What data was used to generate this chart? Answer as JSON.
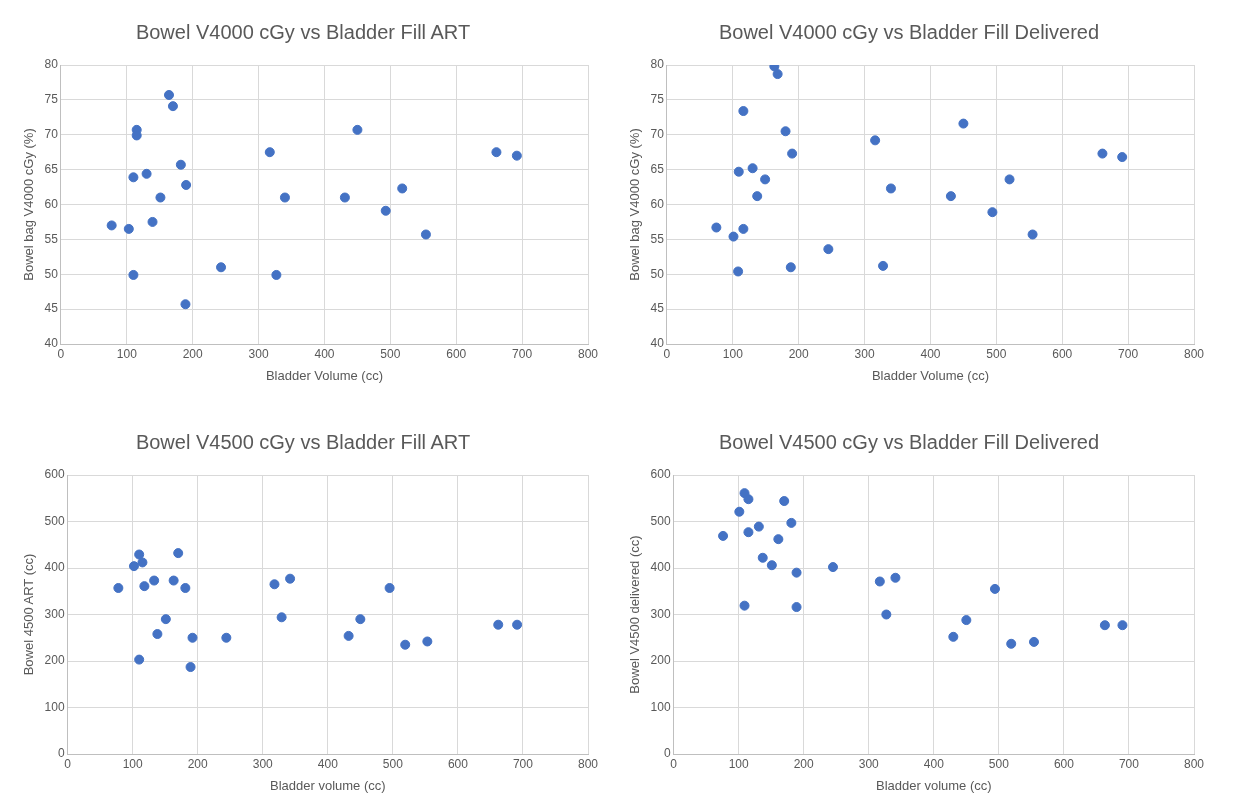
{
  "chart_data": [
    {
      "type": "scatter",
      "title": "Bowel V4000 cGy vs Bladder Fill ART",
      "xlabel": "Bladder Volume (cc)",
      "ylabel": "Bowel bag V4000 cGy (%)",
      "x": [
        164,
        170,
        115,
        115,
        182,
        130,
        110,
        190,
        151,
        77,
        103,
        139,
        110,
        189,
        243,
        317,
        327,
        340,
        450,
        431,
        493,
        518,
        554,
        661,
        692
      ],
      "values": [
        75.7,
        74.1,
        70.7,
        69.9,
        65.7,
        64.4,
        63.9,
        62.8,
        61,
        57,
        56.5,
        57.5,
        49.9,
        45.7,
        51,
        67.5,
        49.9,
        61,
        70.7,
        61,
        59.1,
        62.3,
        55.7,
        67.5,
        67
      ],
      "color": "#4472c4",
      "marker": "circle",
      "grid": true,
      "xlim": [
        0,
        800
      ],
      "xticks": [
        0,
        100,
        200,
        300,
        400,
        500,
        600,
        700,
        800
      ],
      "ylim": [
        40,
        80
      ],
      "yticks": [
        40,
        45,
        50,
        55,
        60,
        65,
        70,
        75,
        80
      ]
    },
    {
      "type": "scatter",
      "title": "Bowel V4000 cGy vs Bladder Fill Delivered",
      "xlabel": "Bladder Volume (cc)",
      "ylabel": "Bowel bag V4000 cGy (%)",
      "x": [
        163,
        168,
        116,
        180,
        190,
        316,
        450,
        109,
        130,
        149,
        137,
        340,
        431,
        520,
        661,
        691,
        494,
        555,
        75,
        101,
        116,
        245,
        328,
        188,
        108
      ],
      "values": [
        79.8,
        78.7,
        73.4,
        70.5,
        67.3,
        69.2,
        71.6,
        64.7,
        65.2,
        63.6,
        61.2,
        62.3,
        61.2,
        63.6,
        67.3,
        66.8,
        58.9,
        55.7,
        56.7,
        55.4,
        56.5,
        53.6,
        51.2,
        51,
        50.4
      ],
      "color": "#4472c4",
      "marker": "circle",
      "grid": true,
      "xlim": [
        0,
        800
      ],
      "xticks": [
        0,
        100,
        200,
        300,
        400,
        500,
        600,
        700,
        800
      ],
      "ylim": [
        40,
        80
      ],
      "yticks": [
        40,
        45,
        50,
        55,
        60,
        65,
        70,
        75,
        80
      ]
    },
    {
      "type": "scatter",
      "title": "Bowel V4500 cGy vs Bladder Fill ART",
      "xlabel": "Bladder volume (cc)",
      "ylabel": "Bowel 4500 ART (cc)",
      "x": [
        110,
        115,
        102,
        170,
        78,
        118,
        133,
        163,
        181,
        151,
        138,
        192,
        244,
        110,
        189,
        318,
        342,
        329,
        495,
        450,
        432,
        519,
        553,
        662,
        691
      ],
      "values": [
        429,
        412,
        404,
        432,
        357,
        361,
        373,
        373,
        357,
        290,
        258,
        250,
        250,
        203,
        187,
        365,
        377,
        294,
        357,
        290,
        254,
        235,
        242,
        278,
        278
      ],
      "color": "#4472c4",
      "marker": "circle",
      "grid": true,
      "xlim": [
        0,
        800
      ],
      "xticks": [
        0,
        100,
        200,
        300,
        400,
        500,
        600,
        700,
        800
      ],
      "ylim": [
        0,
        600
      ],
      "yticks": [
        0,
        100,
        200,
        300,
        400,
        500,
        600
      ]
    },
    {
      "type": "scatter",
      "title": "Bowel V4500 cGy vs Bladder Fill Delivered",
      "xlabel": "Bladder volume (cc)",
      "ylabel": "Bowel V4500 delivered (cc)",
      "x": [
        109,
        115,
        170,
        101,
        181,
        131,
        115,
        76,
        161,
        137,
        151,
        189,
        245,
        109,
        189,
        317,
        341,
        327,
        494,
        450,
        430,
        519,
        554,
        663,
        690
      ],
      "values": [
        561,
        548,
        544,
        521,
        497,
        489,
        477,
        469,
        462,
        422,
        406,
        390,
        402,
        319,
        316,
        371,
        379,
        300,
        355,
        288,
        252,
        237,
        241,
        277,
        277
      ],
      "color": "#4472c4",
      "marker": "circle",
      "grid": true,
      "xlim": [
        0,
        800
      ],
      "xticks": [
        0,
        100,
        200,
        300,
        400,
        500,
        600,
        700,
        800
      ],
      "ylim": [
        0,
        600
      ],
      "yticks": [
        0,
        100,
        200,
        300,
        400,
        500,
        600
      ]
    }
  ]
}
